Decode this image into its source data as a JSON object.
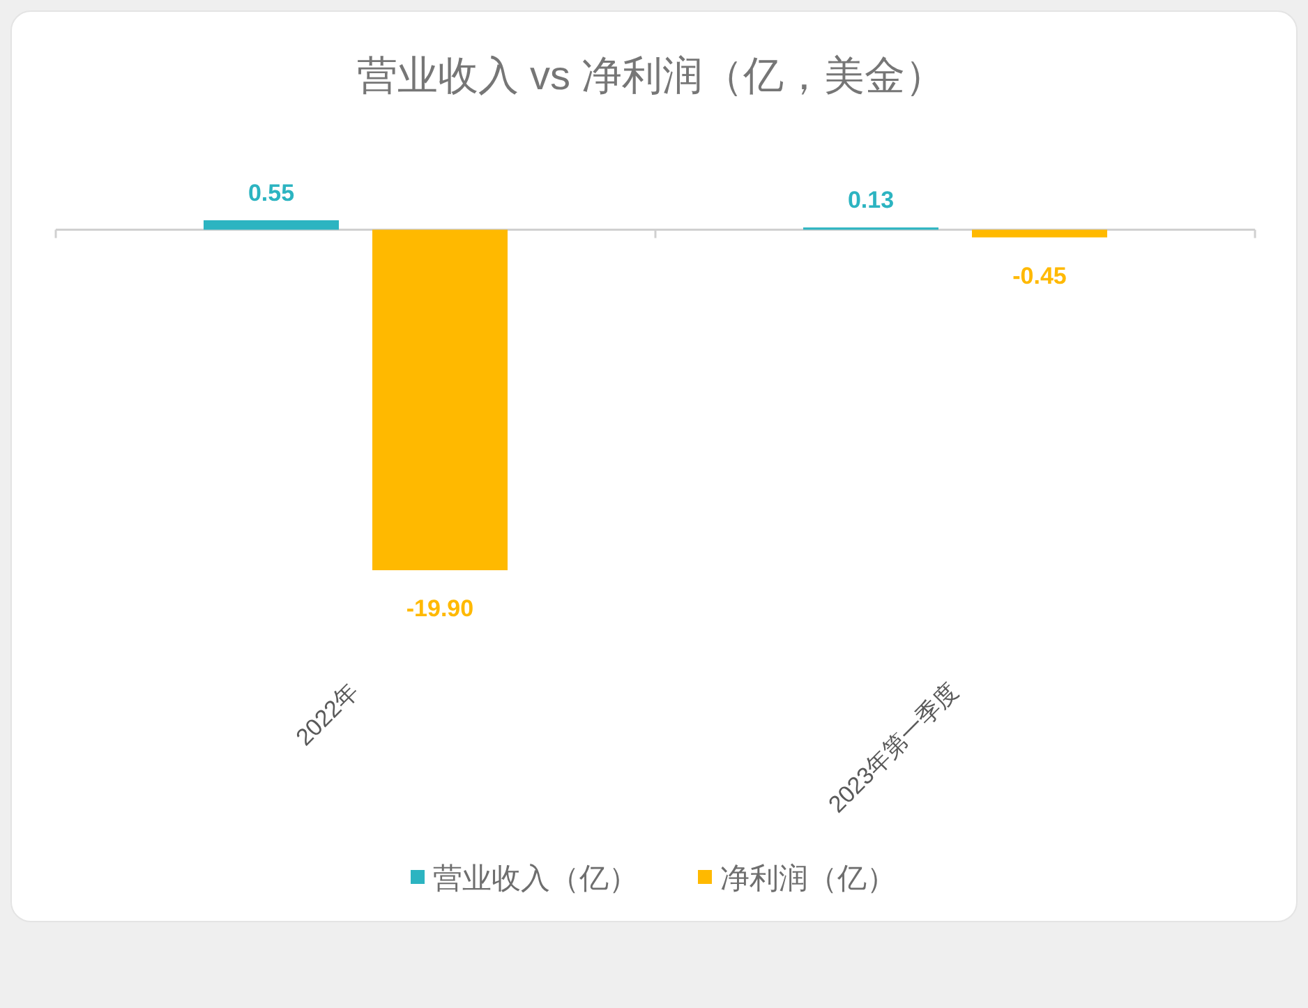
{
  "chart_data": {
    "type": "bar",
    "title": "营业收入 vs 净利润（亿，美金）",
    "categories": [
      "2022年",
      "2023年第一季度"
    ],
    "series": [
      {
        "name": "营业收入（亿）",
        "color": "#2cb4c1",
        "values": [
          0.55,
          0.13
        ],
        "value_labels": [
          "0.55",
          "0.13"
        ]
      },
      {
        "name": "净利润（亿）",
        "color": "#ffb900",
        "values": [
          -19.9,
          -0.45
        ],
        "value_labels": [
          "-19.90",
          "-0.45"
        ]
      }
    ],
    "legend": "bottom",
    "grid": false
  }
}
